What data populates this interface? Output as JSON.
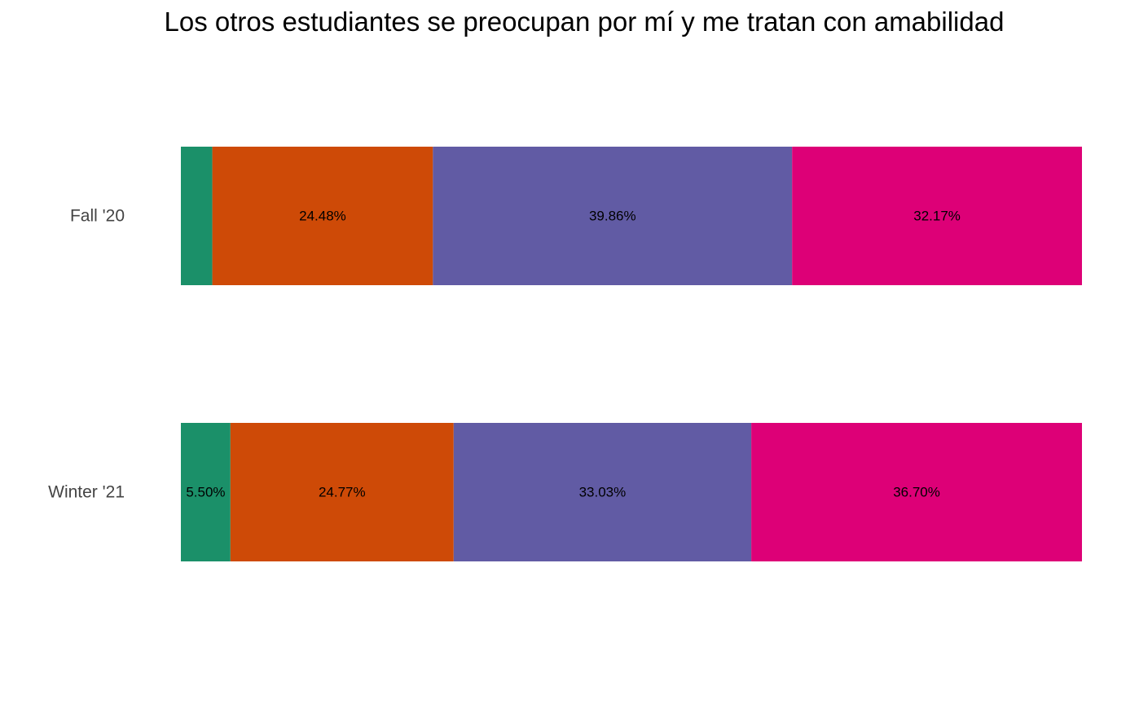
{
  "chart_data": {
    "type": "bar",
    "orientation": "horizontal",
    "stacked": true,
    "normalized": true,
    "title": "Los otros estudiantes se preocupan por mí y me tratan con amabilidad",
    "categories": [
      "Fall '20",
      "Winter '21"
    ],
    "xlim": [
      0,
      100
    ],
    "grid": false,
    "legend": "none",
    "series": [
      {
        "color": "#1B9069",
        "values": [
          3.49,
          5.5
        ],
        "labels": [
          "",
          "5.50%"
        ]
      },
      {
        "color": "#CE4A07",
        "values": [
          24.48,
          24.77
        ],
        "labels": [
          "24.48%",
          "24.77%"
        ]
      },
      {
        "color": "#615BA4",
        "values": [
          39.86,
          33.03
        ],
        "labels": [
          "39.86%",
          "33.03%"
        ]
      },
      {
        "color": "#DD0077",
        "values": [
          32.17,
          36.7
        ],
        "labels": [
          "32.17%",
          "36.70%"
        ]
      }
    ]
  }
}
